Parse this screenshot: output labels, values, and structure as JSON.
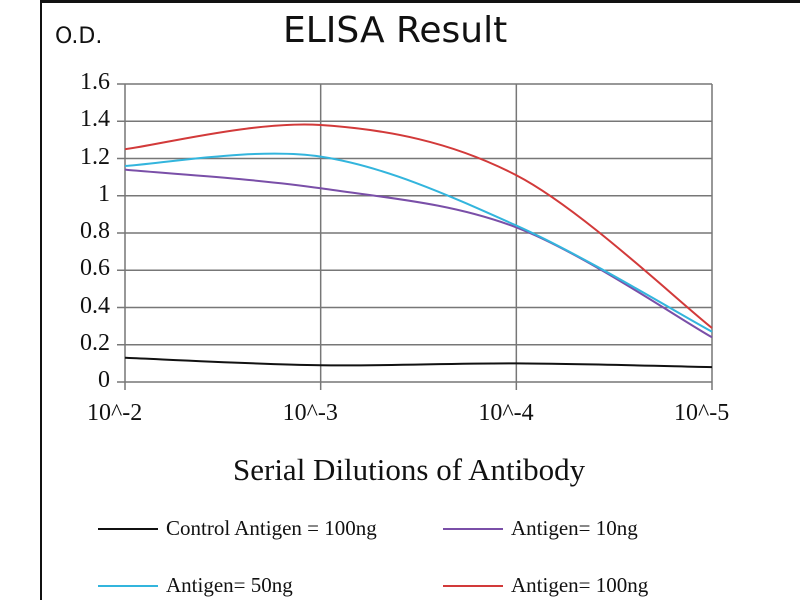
{
  "chart_data": {
    "type": "line",
    "title": "ELISA Result",
    "ylabel": "O.D.",
    "xlabel": "Serial Dilutions  of Antibody",
    "categories": [
      "10^-2",
      "10^-3",
      "10^-4",
      "10^-5"
    ],
    "ylim": [
      0,
      1.6
    ],
    "yticks": [
      "0",
      "0.2",
      "0.4",
      "0.6",
      "0.8",
      "1",
      "1.2",
      "1.4",
      "1.6"
    ],
    "grid": true,
    "legend_position": "bottom",
    "series": [
      {
        "name": "Control Antigen = 100ng",
        "color": "#111111",
        "values": [
          0.13,
          0.09,
          0.1,
          0.08
        ]
      },
      {
        "name": "Antigen= 10ng",
        "color": "#7a4fa8",
        "values": [
          1.14,
          1.04,
          0.83,
          0.24
        ]
      },
      {
        "name": "Antigen= 50ng",
        "color": "#33b5dd",
        "values": [
          1.16,
          1.21,
          0.84,
          0.27
        ]
      },
      {
        "name": "Antigen= 100ng",
        "color": "#d23a3a",
        "values": [
          1.25,
          1.38,
          1.11,
          0.29
        ]
      }
    ]
  }
}
